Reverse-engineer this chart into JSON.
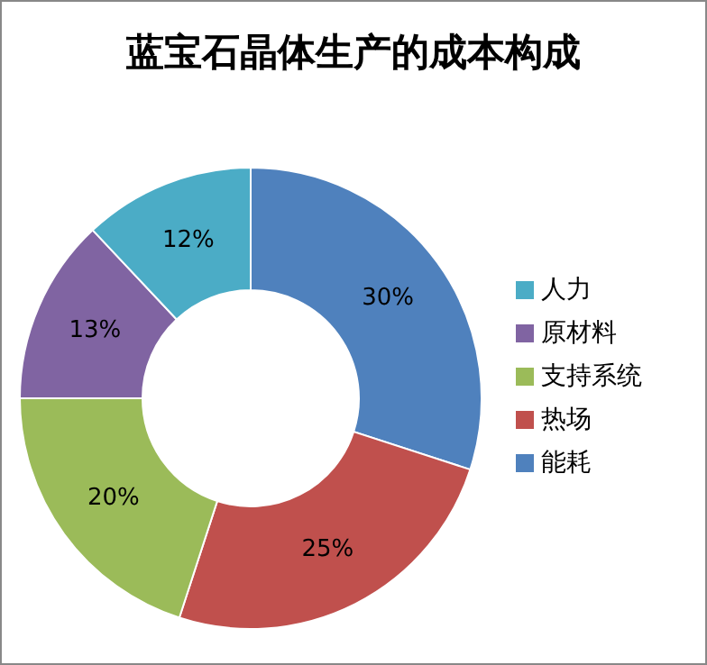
{
  "chart_data": {
    "type": "donut",
    "title": "蓝宝石晶体生产的成本构成",
    "categories": [
      "能耗",
      "热场",
      "支持系统",
      "原材料",
      "人力"
    ],
    "values": [
      30,
      25,
      20,
      13,
      12
    ],
    "value_labels": [
      "30%",
      "25%",
      "20%",
      "13%",
      "12%"
    ],
    "colors": [
      "#4f81bd",
      "#c0504d",
      "#9bbb59",
      "#8064a2",
      "#4bacc6"
    ],
    "legend": "right"
  }
}
